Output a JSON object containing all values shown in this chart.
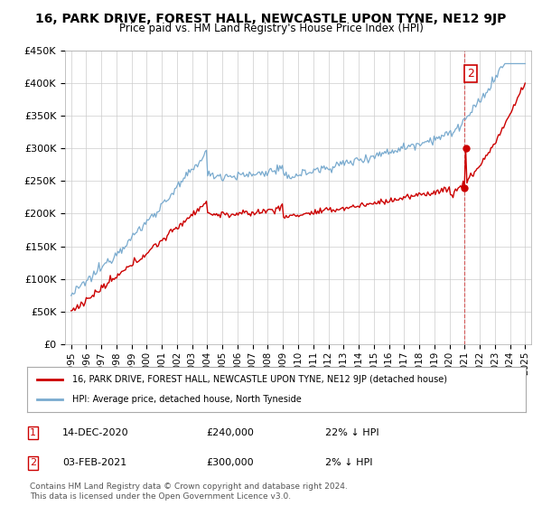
{
  "title": "16, PARK DRIVE, FOREST HALL, NEWCASTLE UPON TYNE, NE12 9JP",
  "subtitle": "Price paid vs. HM Land Registry's House Price Index (HPI)",
  "ylim": [
    0,
    450000
  ],
  "xlim_start": 1994.6,
  "xlim_end": 2025.4,
  "sale1_date": "14-DEC-2020",
  "sale1_price": 240000,
  "sale1_hpi": "22% ↓ HPI",
  "sale1_x": 2020.96,
  "sale2_date": "03-FEB-2021",
  "sale2_price": 300000,
  "sale2_hpi": "2% ↓ HPI",
  "sale2_x": 2021.08,
  "red_color": "#cc0000",
  "blue_color": "#7aabcf",
  "marker_color": "#cc0000",
  "label_box_color": "#cc0000",
  "legend_label1": "16, PARK DRIVE, FOREST HALL, NEWCASTLE UPON TYNE, NE12 9JP (detached house)",
  "legend_label2": "HPI: Average price, detached house, North Tyneside",
  "footer1": "Contains HM Land Registry data © Crown copyright and database right 2024.",
  "footer2": "This data is licensed under the Open Government Licence v3.0.",
  "bg_color": "#ffffff",
  "grid_color": "#cccccc",
  "dpi": 100,
  "fig_width": 6.0,
  "fig_height": 5.6
}
